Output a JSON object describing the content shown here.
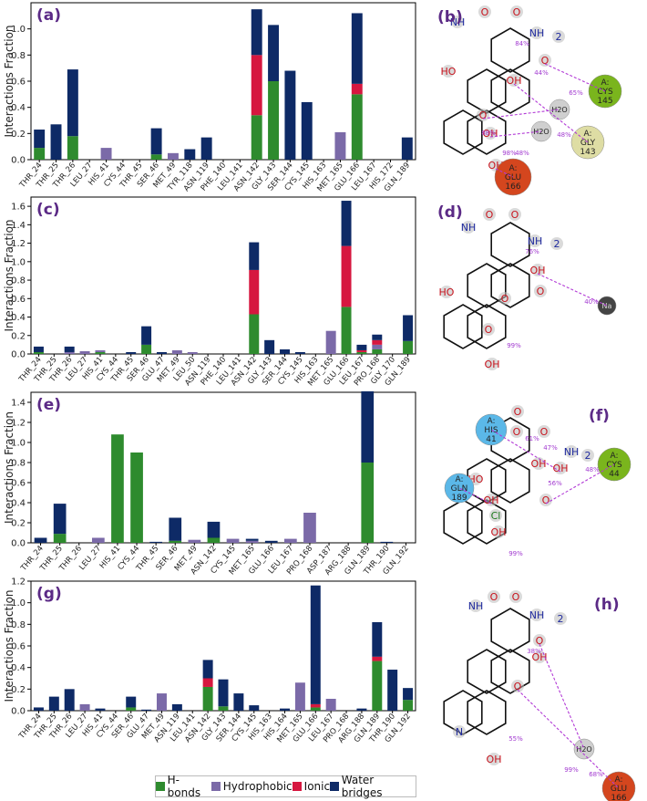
{
  "colors": {
    "hbonds": "#2e8b2e",
    "hydrophobic": "#7b6aa8",
    "ionic": "#d6173f",
    "water": "#0e2a66",
    "panel_label": "#5b2a86"
  },
  "legend": {
    "items": [
      {
        "label": "H-bonds",
        "color": "#2e8b2e"
      },
      {
        "label": "Hydrophobic",
        "color": "#7b6aa8"
      },
      {
        "label": "Ionic",
        "color": "#d6173f"
      },
      {
        "label": "Water bridges",
        "color": "#0e2a66"
      }
    ]
  },
  "chart_data": [
    {
      "type": "bar",
      "panel": "(a)",
      "ylabel": "Interactions Fraction",
      "ylim": [
        0,
        1.2
      ],
      "yticks": [
        0.0,
        0.2,
        0.4,
        0.6,
        0.8,
        1.0
      ],
      "stacked": true,
      "categories": [
        "THR_24",
        "THR_25",
        "THR_26",
        "LEU_27",
        "HIS_41",
        "CYS_44",
        "THR_45",
        "SER_46",
        "MET_49",
        "TYR_118",
        "ASN_119",
        "PHE_140",
        "LEU_141",
        "ASN_142",
        "GLY_143",
        "SER_144",
        "CYS_145",
        "HIS_163",
        "MET_165",
        "GLU_166",
        "LEU_167",
        "HIS_172",
        "GLN_189"
      ],
      "series": [
        {
          "name": "H-bonds",
          "values": [
            0.09,
            0,
            0.18,
            0,
            0,
            0,
            0,
            0.04,
            0,
            0,
            0,
            0,
            0,
            0.34,
            0.6,
            0,
            0,
            0,
            0,
            0.5,
            0,
            0,
            0
          ]
        },
        {
          "name": "Hydrophobic",
          "values": [
            0,
            0,
            0,
            0,
            0.09,
            0,
            0,
            0,
            0.05,
            0,
            0,
            0,
            0,
            0,
            0,
            0,
            0,
            0,
            0.21,
            0,
            0,
            0,
            0
          ]
        },
        {
          "name": "Ionic",
          "values": [
            0,
            0,
            0,
            0,
            0,
            0,
            0,
            0,
            0,
            0,
            0,
            0,
            0,
            0.46,
            0,
            0,
            0,
            0,
            0,
            0.08,
            0,
            0,
            0
          ]
        },
        {
          "name": "Water bridges",
          "values": [
            0.14,
            0.27,
            0.51,
            0,
            0,
            0,
            0,
            0.2,
            0,
            0.08,
            0.17,
            0,
            0,
            0.35,
            0.43,
            0.68,
            0.44,
            0,
            0,
            0.54,
            0,
            0,
            0.17
          ]
        }
      ]
    },
    {
      "type": "bar",
      "panel": "(c)",
      "ylabel": "Interactions Fraction",
      "ylim": [
        0,
        1.7
      ],
      "yticks": [
        0.0,
        0.2,
        0.4,
        0.6,
        0.8,
        1.0,
        1.2,
        1.4,
        1.6
      ],
      "stacked": true,
      "categories": [
        "THR_24",
        "THR_25",
        "THR_26",
        "LEU_27",
        "HIS_41",
        "CYS_44",
        "THR_45",
        "SER_46",
        "GLU_47",
        "MET_49",
        "LEU_50",
        "ASN_119",
        "PHE_140",
        "LEU_141",
        "ASN_142",
        "GLY_143",
        "SER_144",
        "CYS_145",
        "HIS_163",
        "MET_165",
        "GLU_166",
        "LEU_167",
        "PRO_168",
        "GLY_170",
        "GLN_189"
      ],
      "series": [
        {
          "name": "H-bonds",
          "values": [
            0.02,
            0,
            0,
            0,
            0.02,
            0,
            0,
            0.1,
            0,
            0,
            0,
            0,
            0,
            0,
            0.43,
            0,
            0,
            0,
            0,
            0,
            0.51,
            0.02,
            0.05,
            0,
            0.14
          ]
        },
        {
          "name": "Hydrophobic",
          "values": [
            0,
            0,
            0.02,
            0.03,
            0.02,
            0,
            0,
            0,
            0,
            0.04,
            0.02,
            0,
            0,
            0,
            0,
            0,
            0,
            0,
            0,
            0.25,
            0,
            0,
            0.05,
            0,
            0
          ]
        },
        {
          "name": "Ionic",
          "values": [
            0,
            0,
            0,
            0,
            0,
            0,
            0,
            0,
            0,
            0,
            0,
            0,
            0,
            0,
            0.48,
            0,
            0,
            0,
            0,
            0,
            0.66,
            0.02,
            0.05,
            0,
            0
          ]
        },
        {
          "name": "Water bridges",
          "values": [
            0.06,
            0,
            0.06,
            0,
            0,
            0,
            0.02,
            0.2,
            0.02,
            0,
            0,
            0,
            0,
            0,
            0.3,
            0.15,
            0.05,
            0.02,
            0,
            0,
            0.49,
            0.06,
            0.06,
            0,
            0.28
          ]
        }
      ]
    },
    {
      "type": "bar",
      "panel": "(e)",
      "ylabel": "Interactions Fraction",
      "ylim": [
        0,
        1.5
      ],
      "yticks": [
        0.0,
        0.2,
        0.4,
        0.6,
        0.8,
        1.0,
        1.2,
        1.4
      ],
      "stacked": true,
      "categories": [
        "THR_24",
        "THR_25",
        "THR_26",
        "LEU_27",
        "HIS_41",
        "CYS_44",
        "THR_45",
        "SER_46",
        "MET_49",
        "ASN_142",
        "CYS_145",
        "MET_165",
        "GLU_166",
        "LEU_167",
        "PRO_168",
        "ASP_187",
        "ARG_188",
        "GLN_189",
        "THR_190",
        "GLN_192"
      ],
      "series": [
        {
          "name": "H-bonds",
          "values": [
            0,
            0.09,
            0,
            0,
            1.08,
            0.9,
            0,
            0.02,
            0,
            0.05,
            0,
            0,
            0,
            0,
            0,
            0,
            0,
            0.8,
            0,
            0
          ]
        },
        {
          "name": "Hydrophobic",
          "values": [
            0,
            0,
            0,
            0.05,
            0,
            0,
            0,
            0,
            0.03,
            0,
            0.04,
            0.02,
            0,
            0.04,
            0.3,
            0,
            0,
            0,
            0,
            0
          ]
        },
        {
          "name": "Ionic",
          "values": [
            0,
            0,
            0,
            0,
            0,
            0,
            0,
            0,
            0,
            0,
            0,
            0,
            0,
            0,
            0,
            0,
            0,
            0,
            0,
            0
          ]
        },
        {
          "name": "Water bridges",
          "values": [
            0.05,
            0.3,
            0,
            0,
            0,
            0,
            0.01,
            0.23,
            0,
            0.16,
            0,
            0.02,
            0.02,
            0,
            0,
            0,
            0,
            0.71,
            0.01,
            0
          ]
        }
      ]
    },
    {
      "type": "bar",
      "panel": "(g)",
      "ylabel": "Interactions Fraction",
      "ylim": [
        0,
        1.2
      ],
      "yticks": [
        0.0,
        0.2,
        0.4,
        0.6,
        0.8,
        1.0,
        1.2
      ],
      "stacked": true,
      "categories": [
        "THR_24",
        "THR_25",
        "THR_26",
        "LEU_27",
        "HIS_41",
        "CYS_44",
        "SER_46",
        "GLU_47",
        "MET_49",
        "ASN_119",
        "LEU_141",
        "ASN_142",
        "GLY_143",
        "SER_144",
        "CYS_145",
        "HIS_163",
        "HIS_164",
        "MET_165",
        "GLU_166",
        "LEU_167",
        "PRO_168",
        "ARG_188",
        "GLN_189",
        "THR_190",
        "GLN_192"
      ],
      "series": [
        {
          "name": "H-bonds",
          "values": [
            0,
            0,
            0,
            0,
            0,
            0,
            0.03,
            0,
            0,
            0,
            0,
            0.22,
            0.04,
            0,
            0,
            0,
            0,
            0,
            0.03,
            0,
            0,
            0,
            0.46,
            0,
            0.1
          ]
        },
        {
          "name": "Hydrophobic",
          "values": [
            0,
            0,
            0,
            0.06,
            0,
            0,
            0,
            0,
            0.16,
            0,
            0,
            0,
            0,
            0,
            0,
            0,
            0,
            0.26,
            0,
            0.11,
            0,
            0,
            0,
            0,
            0
          ]
        },
        {
          "name": "Ionic",
          "values": [
            0,
            0,
            0,
            0,
            0,
            0,
            0,
            0,
            0,
            0,
            0,
            0.08,
            0,
            0,
            0,
            0,
            0,
            0,
            0.03,
            0,
            0,
            0,
            0.04,
            0,
            0
          ]
        },
        {
          "name": "Water bridges",
          "values": [
            0.03,
            0.13,
            0.2,
            0,
            0.02,
            0,
            0.1,
            0.01,
            0,
            0.06,
            0,
            0.17,
            0.25,
            0.16,
            0.05,
            0,
            0.02,
            0,
            1.1,
            0,
            0,
            0.02,
            0.32,
            0.38,
            0.11
          ]
        }
      ]
    }
  ],
  "diagrams": [
    {
      "panel": "(b)",
      "atoms": [
        "NH",
        "O",
        "O",
        "NH",
        "2",
        "HO",
        "O",
        "OH",
        "O",
        "OH",
        "OH"
      ],
      "partners": [
        {
          "id": "b1",
          "lines": [
            "A:",
            "CYS",
            "145"
          ],
          "color": "#7ab51d"
        },
        {
          "id": "b2",
          "lines": [
            "A:",
            "GLY",
            "143"
          ],
          "color": "#dedda4"
        },
        {
          "id": "b3",
          "lines": [
            "H2O"
          ],
          "color": "#cfcfcf"
        },
        {
          "id": "b4",
          "lines": [
            "H2O"
          ],
          "color": "#cfcfcf"
        },
        {
          "id": "b5",
          "lines": [
            "A:",
            "GLU",
            "166"
          ],
          "color": "#d4461e"
        }
      ],
      "percents": [
        "84%",
        "65%",
        "44%",
        "48%",
        "88%",
        "98%",
        "48%"
      ]
    },
    {
      "panel": "(d)",
      "atoms": [
        "NH",
        "O",
        "O",
        "NH",
        "2",
        "HO",
        "OH",
        "O",
        "O",
        "O",
        "OH"
      ],
      "partners": [
        {
          "id": "d1",
          "lines": [
            "Na"
          ],
          "color": "#444444"
        }
      ],
      "percents": [
        "76%",
        "40%",
        "99%"
      ]
    },
    {
      "panel": "(f)",
      "atoms": [
        "O",
        "O",
        "O",
        "NH",
        "2",
        "OH",
        "OH",
        "O",
        "OH",
        "OH",
        "Cl",
        "HO"
      ],
      "partners": [
        {
          "id": "f1",
          "lines": [
            "A:",
            "HIS",
            "41"
          ],
          "color": "#5bb8e8"
        },
        {
          "id": "f2",
          "lines": [
            "A:",
            "CYS",
            "44"
          ],
          "color": "#7ab51d"
        },
        {
          "id": "f3",
          "lines": [
            "A:",
            "GLN",
            "189"
          ],
          "color": "#5bb8e8"
        }
      ],
      "percents": [
        "61%",
        "47%",
        "56%",
        "99%",
        "48%"
      ]
    },
    {
      "panel": "(h)",
      "atoms": [
        "NH",
        "O",
        "O",
        "NH",
        "2",
        "OH",
        "O",
        "O",
        "OH",
        "N"
      ],
      "partners": [
        {
          "id": "h1",
          "lines": [
            "H2O"
          ],
          "color": "#cfcfcf"
        },
        {
          "id": "h2",
          "lines": [
            "A:",
            "GLU",
            "166"
          ],
          "color": "#d4461e"
        }
      ],
      "percents": [
        "38%",
        "99%",
        "55%",
        "68%"
      ]
    }
  ]
}
